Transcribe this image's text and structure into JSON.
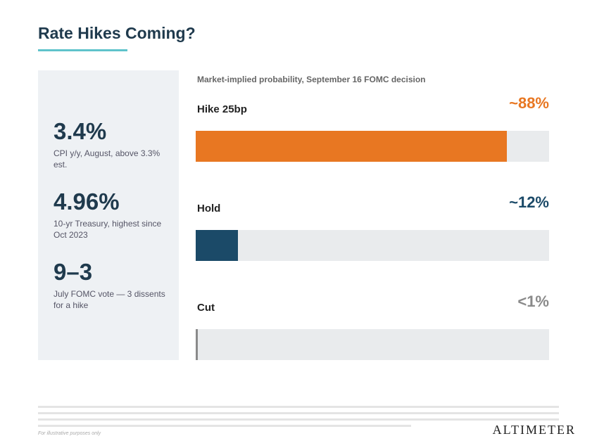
{
  "header": {
    "title": "Rate Hikes Coming?"
  },
  "stats": [
    {
      "value": "3.4%",
      "label": "CPI y/y, August, above 3.3% est."
    },
    {
      "value": "4.96%",
      "label": "10-yr Treasury, highest since Oct 2023"
    },
    {
      "value": "9–3",
      "label": "July FOMC vote — 3 dissents for a hike"
    }
  ],
  "chart_data": {
    "type": "bar",
    "orientation": "horizontal",
    "title": "Market-implied probability, September 16 FOMC decision",
    "categories": [
      "Hike 25bp",
      "Hold",
      "Cut"
    ],
    "values": [
      88,
      12,
      0.5
    ],
    "value_labels": [
      "~88%",
      "~12%",
      "<1%"
    ],
    "colors": [
      "#e87722",
      "#1b4a68",
      "#8a8a8a"
    ],
    "xlim": [
      0,
      100
    ]
  },
  "footer": {
    "note": "For illustrative purposes only",
    "logo": "ALTIMETER"
  }
}
